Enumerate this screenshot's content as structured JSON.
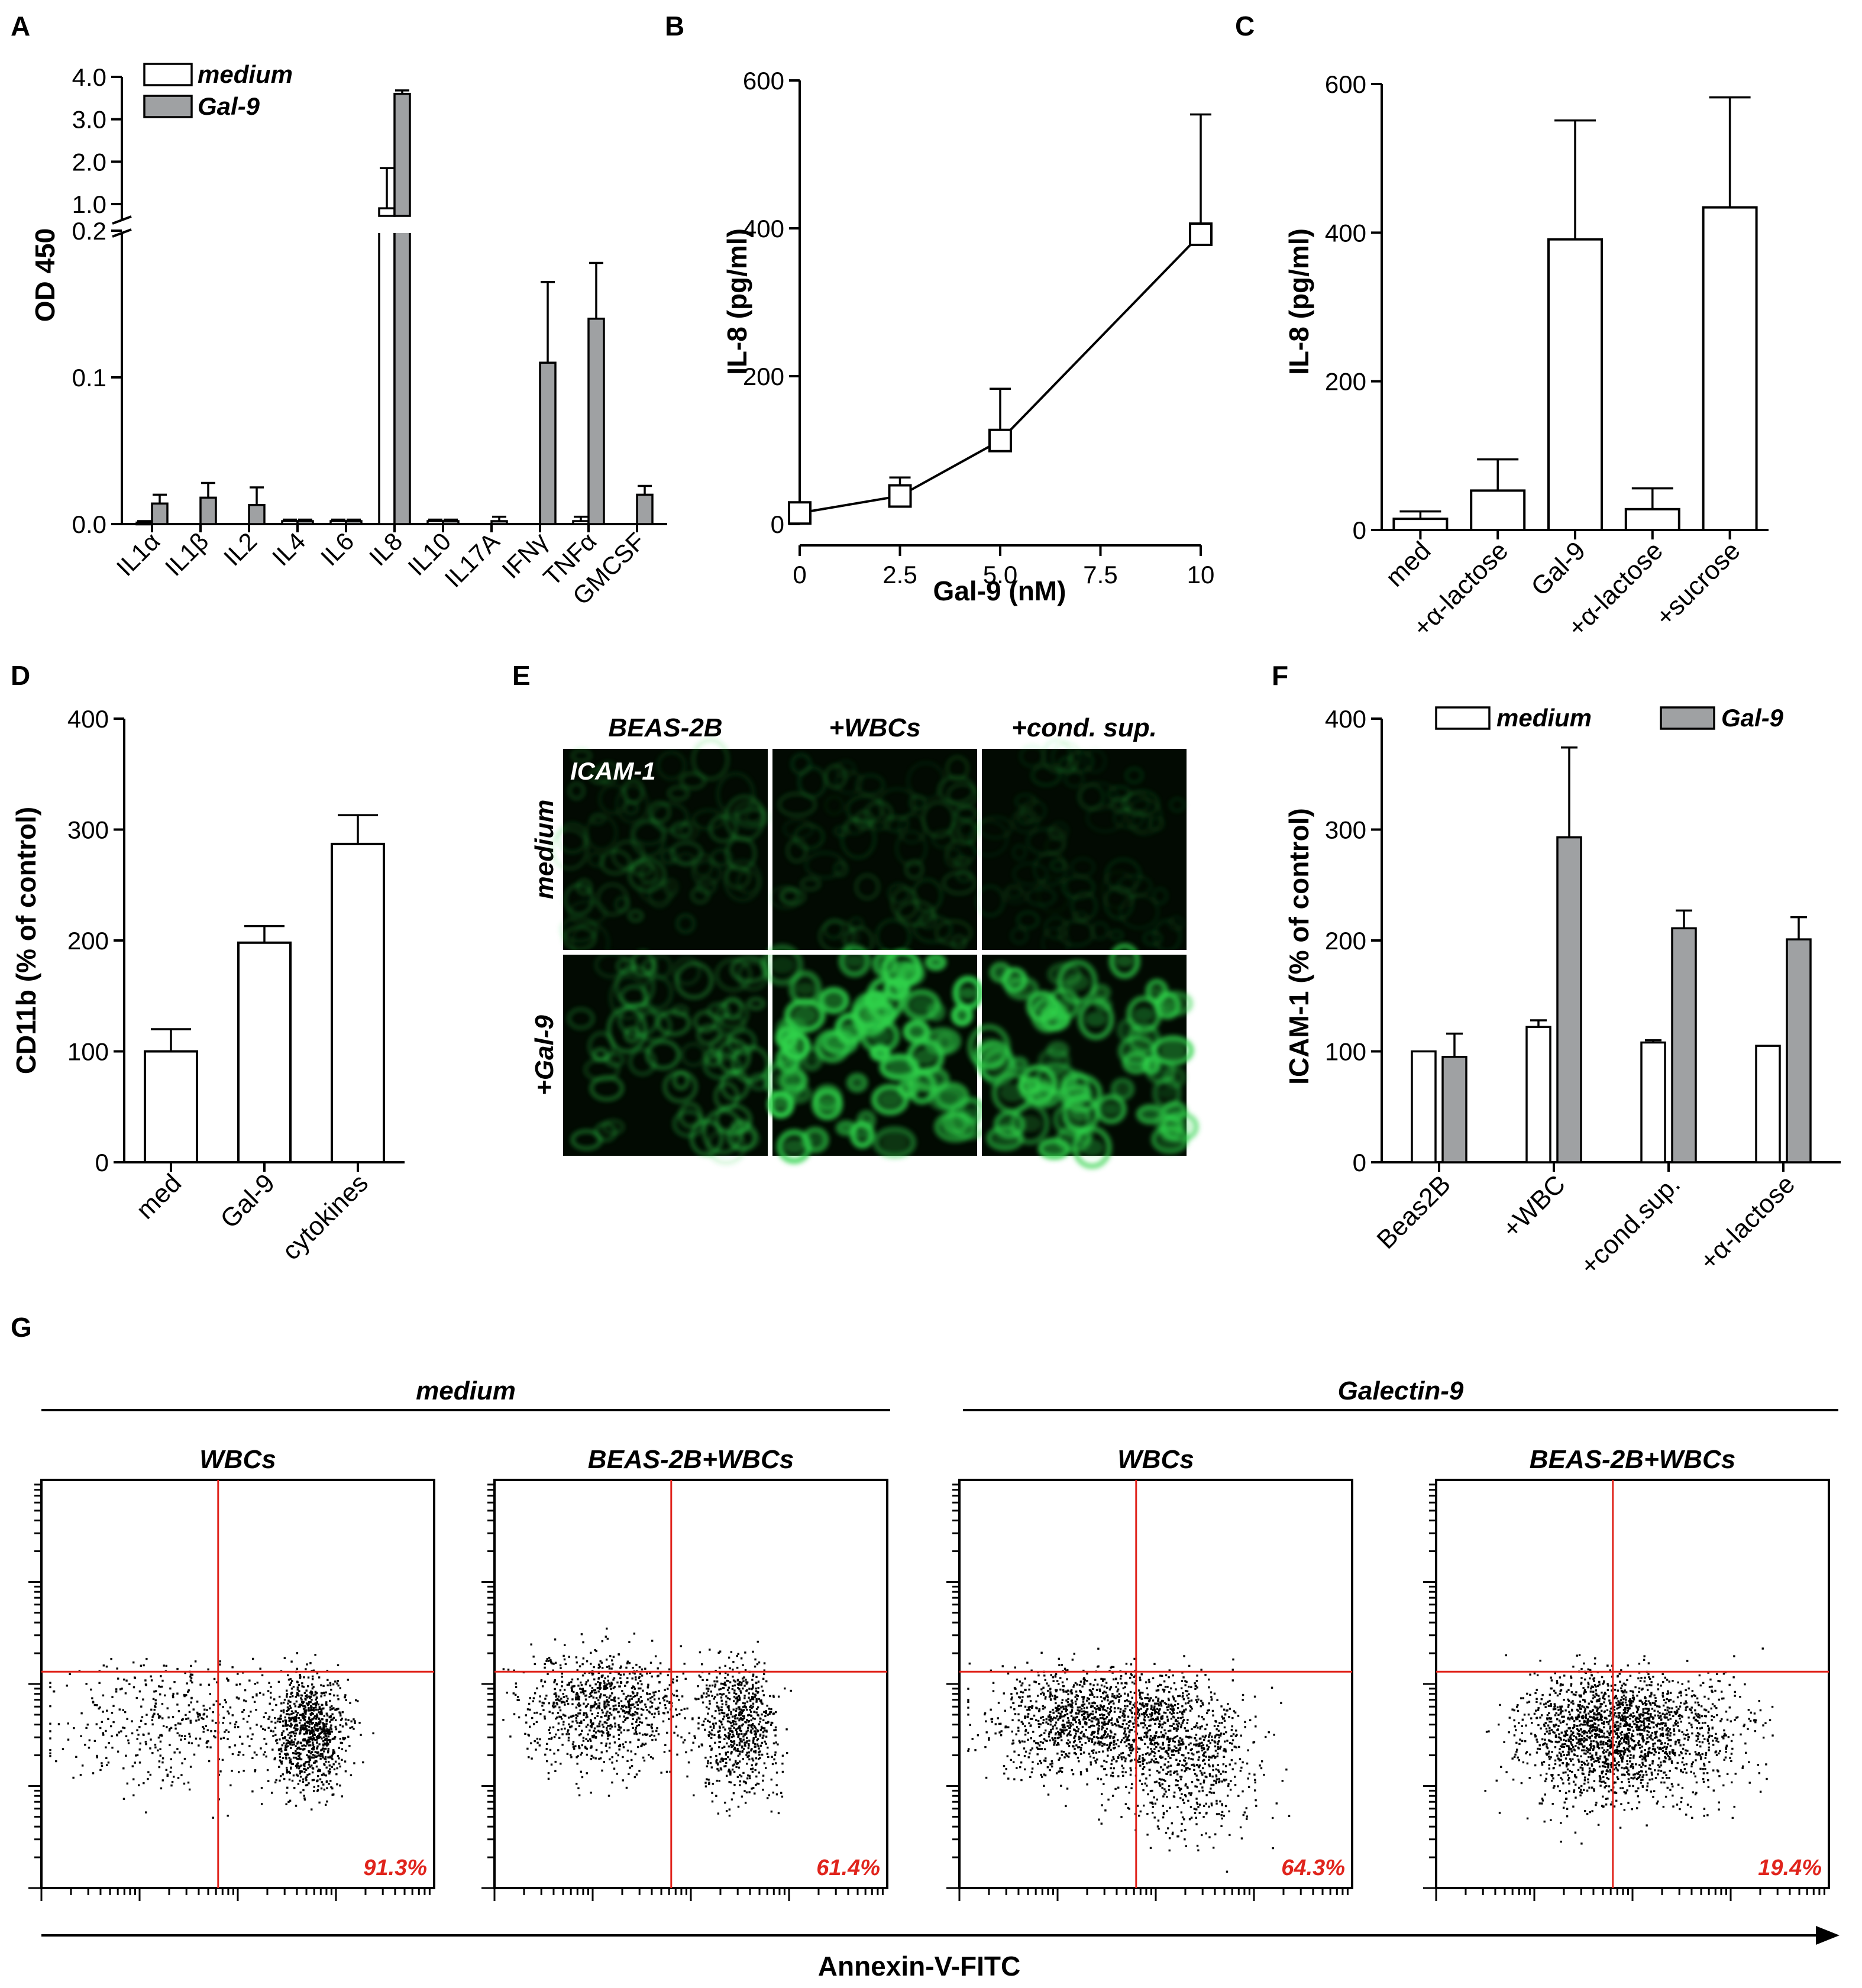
{
  "colors": {
    "gray_bar": "#9fa1a3",
    "white_bar": "#ffffff",
    "quadrant_line": "#e0241c",
    "percent_text": "#e0241c",
    "micro_bg": "#020a02",
    "micro_cell": "#2fd24a"
  },
  "panels": {
    "A": {
      "letter": "A"
    },
    "B": {
      "letter": "B"
    },
    "C": {
      "letter": "C"
    },
    "D": {
      "letter": "D"
    },
    "E": {
      "letter": "E",
      "columns": [
        "BEAS-2B",
        "+WBCs",
        "+cond. sup."
      ],
      "rows": [
        "medium",
        "+Gal-9"
      ],
      "stain_label": "ICAM-1",
      "intensity": [
        [
          0.3,
          0.25,
          0.2
        ],
        [
          0.45,
          1.0,
          0.85
        ]
      ]
    },
    "F": {
      "letter": "F"
    },
    "G": {
      "letter": "G",
      "groups": [
        "medium",
        "Galectin-9"
      ],
      "plots": [
        {
          "title": "WBCs",
          "percent": "91.3%"
        },
        {
          "title": "BEAS-2B+WBCs",
          "percent": "61.4%"
        },
        {
          "title": "WBCs",
          "percent": "64.3%"
        },
        {
          "title": "BEAS-2B+WBCs",
          "percent": "19.4%"
        }
      ],
      "xlabel": "Annexin-V-FITC"
    }
  },
  "chart_data": [
    {
      "panel": "A",
      "type": "bar",
      "ylabel": "OD 450",
      "categories": [
        "IL1α",
        "IL1β",
        "IL2",
        "IL4",
        "IL6",
        "IL8",
        "IL10",
        "IL17A",
        "IFNγ",
        "TNFα",
        "GMCSF"
      ],
      "series": [
        {
          "name": "medium",
          "values": [
            0.001,
            null,
            null,
            0.002,
            0.002,
            0.9,
            0.002,
            null,
            null,
            0.002,
            null
          ],
          "errors": [
            0.001,
            null,
            null,
            0.001,
            0.001,
            0.95,
            0.001,
            null,
            null,
            0.003,
            null
          ]
        },
        {
          "name": "Gal-9",
          "values": [
            0.014,
            0.018,
            0.013,
            0.002,
            0.002,
            3.6,
            0.002,
            0.002,
            0.11,
            0.14,
            0.02
          ],
          "errors": [
            0.006,
            0.01,
            0.012,
            0.001,
            0.001,
            0.08,
            0.001,
            0.003,
            0.055,
            0.038,
            0.006
          ]
        }
      ],
      "ylim": [
        0,
        4.0
      ],
      "axis_break": [
        0.2,
        1.0
      ],
      "yticks": [
        "0.0",
        "0.1",
        "0.2",
        "1.0",
        "2.0",
        "3.0",
        "4.0"
      ]
    },
    {
      "panel": "B",
      "type": "line",
      "xlabel": "Gal-9 (nM)",
      "ylabel": "IL-8 (pg/ml)",
      "x": [
        0,
        2.5,
        5.0,
        10
      ],
      "y": [
        15,
        38,
        113,
        392
      ],
      "errors": [
        0,
        25,
        70,
        162
      ],
      "xlim": [
        0,
        10
      ],
      "ylim": [
        0,
        600
      ],
      "xticks": [
        "0",
        "2.5",
        "5.0",
        "7.5",
        "10"
      ],
      "yticks": [
        "0",
        "200",
        "400",
        "600"
      ]
    },
    {
      "panel": "C",
      "type": "bar",
      "ylabel": "IL-8 (pg/ml)",
      "categories": [
        "med",
        "+α-lactose",
        "Gal-9",
        "+α-lactose",
        "+sucrose"
      ],
      "values": [
        15,
        53,
        391,
        28,
        434
      ],
      "errors": [
        10,
        42,
        160,
        28,
        148
      ],
      "ylim": [
        0,
        600
      ],
      "yticks": [
        "0",
        "200",
        "400",
        "600"
      ]
    },
    {
      "panel": "D",
      "type": "bar",
      "ylabel": "CD11b (% of control)",
      "categories": [
        "med",
        "Gal-9",
        "cytokines"
      ],
      "values": [
        100,
        198,
        287
      ],
      "errors": [
        20,
        15,
        26
      ],
      "ylim": [
        0,
        400
      ],
      "yticks": [
        "0",
        "100",
        "200",
        "300",
        "400"
      ]
    },
    {
      "panel": "F",
      "type": "bar",
      "ylabel": "ICAM-1  (% of control)",
      "categories": [
        "Beas2B",
        "+WBC",
        "+cond.sup.",
        "+α-lactose"
      ],
      "series": [
        {
          "name": "medium",
          "values": [
            100,
            122,
            108,
            105
          ],
          "errors": [
            0,
            6,
            2,
            0
          ]
        },
        {
          "name": "Gal-9",
          "values": [
            95,
            293,
            211,
            201
          ],
          "errors": [
            21,
            81,
            16,
            20
          ]
        }
      ],
      "ylim": [
        0,
        400
      ],
      "yticks": [
        "0",
        "100",
        "200",
        "300",
        "400"
      ]
    }
  ]
}
